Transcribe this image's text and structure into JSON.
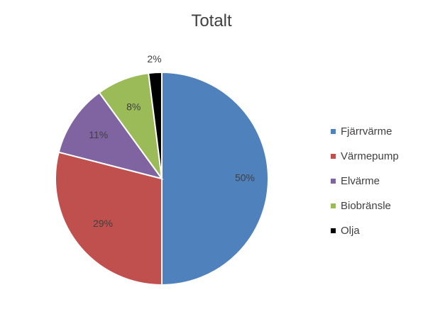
{
  "chart_data": {
    "type": "pie",
    "title": "Totalt",
    "categories": [
      "Fjärrvärme",
      "Värmepump",
      "Elvärme",
      "Biobränsle",
      "Olja"
    ],
    "values": [
      50,
      29,
      11,
      8,
      2
    ],
    "data_labels": [
      "50%",
      "29%",
      "11%",
      "8%",
      "2%"
    ],
    "colors": [
      "#4f81bd",
      "#c0504d",
      "#8064a2",
      "#9bbb59",
      "#000000"
    ],
    "legend_position": "right"
  }
}
